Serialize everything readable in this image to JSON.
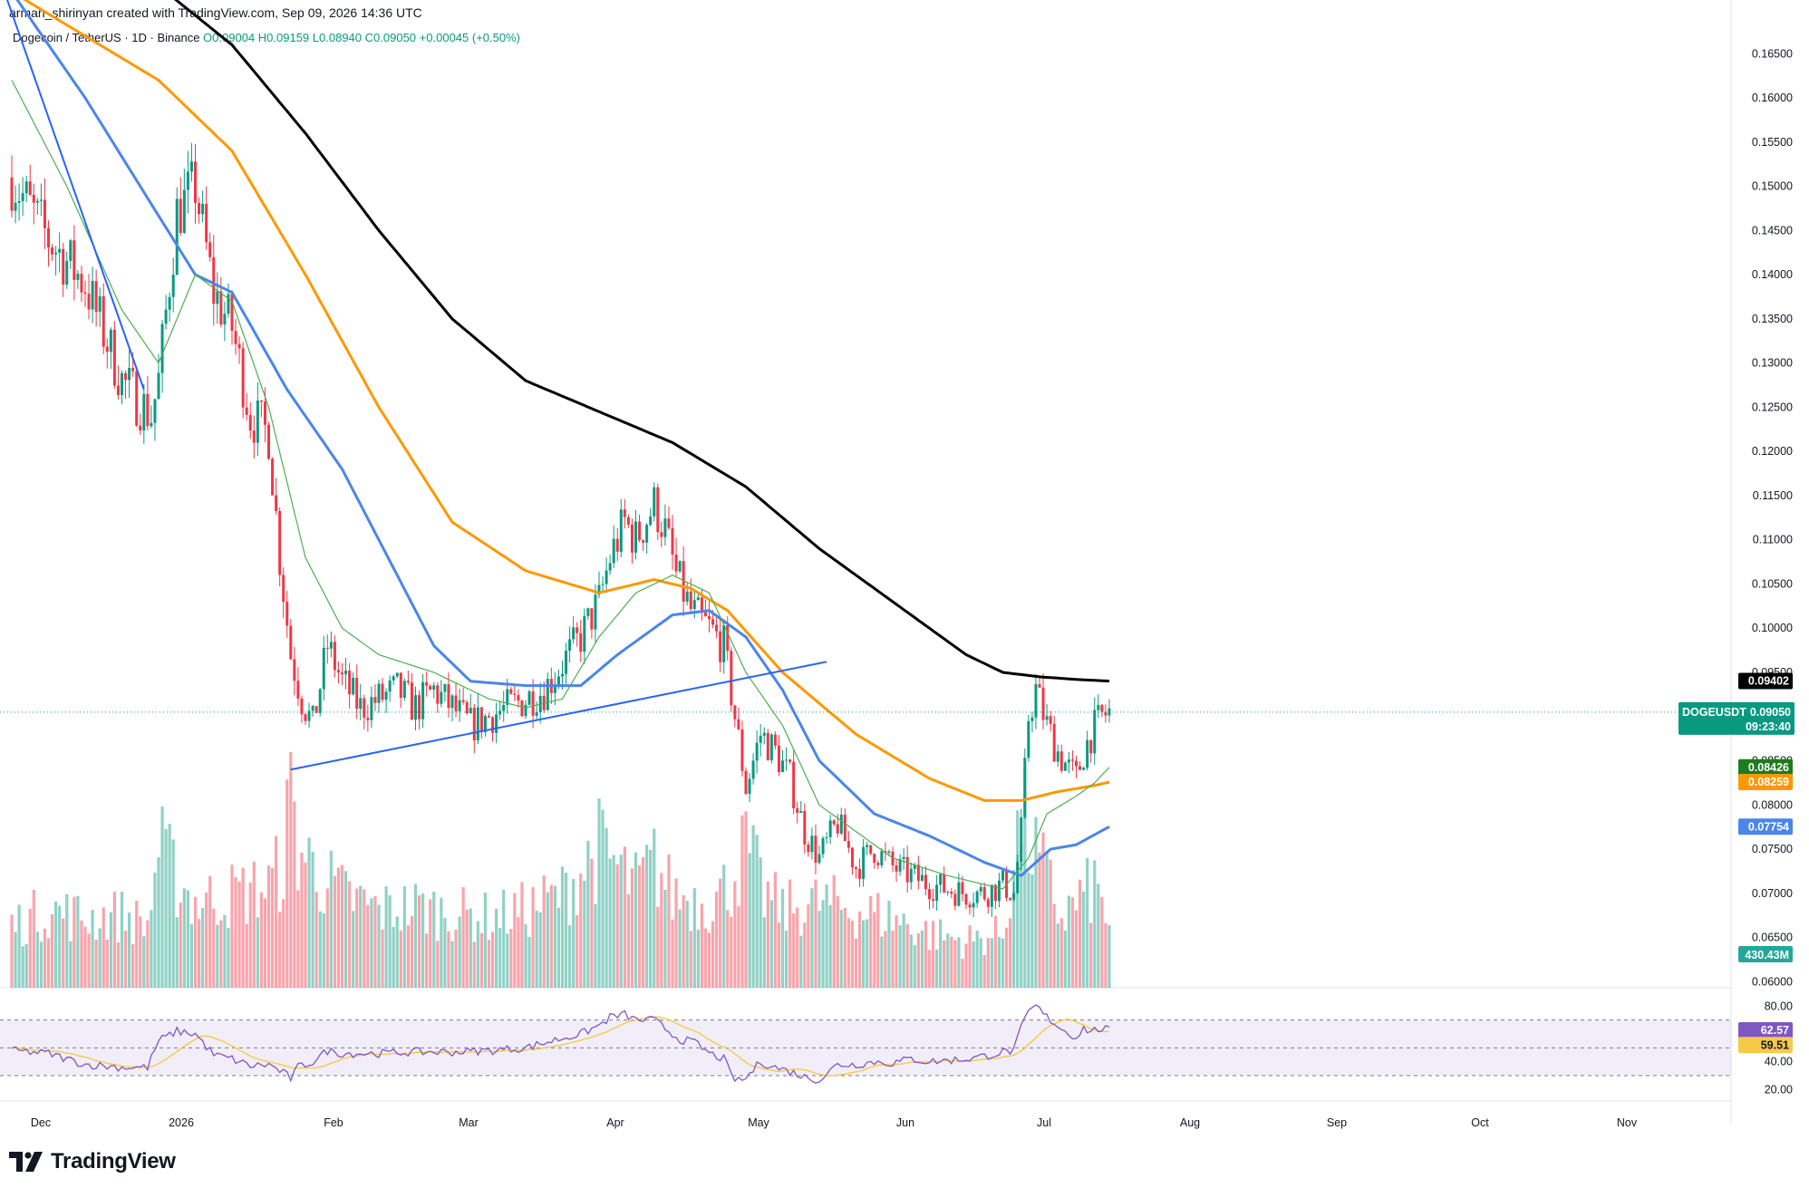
{
  "header": {
    "credit": "arman_shirinyan created with TradingView.com, Sep 09, 2026 14:36 UTC"
  },
  "legend": {
    "symbol": "Dogecoin / TetherUS · 1D · Binance",
    "open": "O0.09004",
    "high": "H0.09159",
    "low": "L0.08940",
    "close": "C0.09050",
    "change": "+0.00045 (+0.50%)"
  },
  "footer": {
    "brand": "TradingView"
  },
  "chart_data": {
    "type": "candlestick",
    "symbol": "DOGEUSDT",
    "timeframe": "1D",
    "exchange": "Binance",
    "price_axis": {
      "ticks": [
        "0.16500",
        "0.16000",
        "0.15500",
        "0.15000",
        "0.14500",
        "0.14000",
        "0.13500",
        "0.13000",
        "0.12500",
        "0.12000",
        "0.11500",
        "0.11000",
        "0.10500",
        "0.10000",
        "0.09500",
        "0.08500",
        "0.08000",
        "0.07500",
        "0.07000",
        "0.06500",
        "0.06000"
      ],
      "range": [
        0.0585,
        0.168
      ]
    },
    "time_axis": {
      "labels": [
        "Dec",
        "2026",
        "Feb",
        "Mar",
        "Apr",
        "May",
        "Jun",
        "Jul",
        "Aug",
        "Sep",
        "Oct",
        "Nov"
      ]
    },
    "price_tags": [
      {
        "label": "",
        "value": "0.09402",
        "bg": "#000000"
      },
      {
        "label": "DOGEUSDT",
        "value": "0.09050",
        "timer": "09:23:40",
        "bg": "#089981"
      },
      {
        "label": "",
        "value": "0.08426",
        "bg": "#1b7d1b"
      },
      {
        "label": "",
        "value": "0.08259",
        "bg": "#ff9800"
      },
      {
        "label": "",
        "value": "0.07754",
        "bg": "#4a86e8"
      }
    ],
    "volume_tag": "430.43M",
    "rsi": {
      "ticks": [
        "80.00",
        "40.00",
        "20.00"
      ],
      "levels": [
        70,
        50,
        30
      ],
      "value": "62.57",
      "ma_value": "59.51"
    },
    "series_keyframes": {
      "close": [
        [
          0,
          0.151
        ],
        [
          10,
          0.144
        ],
        [
          20,
          0.139
        ],
        [
          30,
          0.128
        ],
        [
          38,
          0.124
        ],
        [
          40,
          0.128
        ],
        [
          45,
          0.147
        ],
        [
          50,
          0.15
        ],
        [
          55,
          0.138
        ],
        [
          60,
          0.134
        ],
        [
          65,
          0.124
        ],
        [
          70,
          0.122
        ],
        [
          73,
          0.108
        ],
        [
          76,
          0.097
        ],
        [
          79,
          0.092
        ],
        [
          82,
          0.089
        ],
        [
          86,
          0.098
        ],
        [
          90,
          0.094
        ],
        [
          95,
          0.091
        ],
        [
          100,
          0.092
        ],
        [
          105,
          0.093
        ],
        [
          110,
          0.091
        ],
        [
          115,
          0.093
        ],
        [
          120,
          0.091
        ],
        [
          125,
          0.089
        ],
        [
          130,
          0.09
        ],
        [
          135,
          0.091
        ],
        [
          140,
          0.092
        ],
        [
          145,
          0.093
        ],
        [
          150,
          0.096
        ],
        [
          155,
          0.099
        ],
        [
          160,
          0.103
        ],
        [
          163,
          0.108
        ],
        [
          167,
          0.112
        ],
        [
          170,
          0.11
        ],
        [
          175,
          0.114
        ],
        [
          178,
          0.111
        ],
        [
          181,
          0.106
        ],
        [
          185,
          0.102
        ],
        [
          190,
          0.1
        ],
        [
          194,
          0.098
        ],
        [
          197,
          0.09
        ],
        [
          200,
          0.082
        ],
        [
          204,
          0.088
        ],
        [
          208,
          0.086
        ],
        [
          212,
          0.083
        ],
        [
          216,
          0.077
        ],
        [
          220,
          0.074
        ],
        [
          225,
          0.078
        ],
        [
          230,
          0.073
        ],
        [
          235,
          0.075
        ],
        [
          240,
          0.073
        ],
        [
          245,
          0.072
        ],
        [
          250,
          0.071
        ],
        [
          255,
          0.0705
        ],
        [
          260,
          0.07
        ],
        [
          265,
          0.07
        ],
        [
          270,
          0.071
        ],
        [
          273,
          0.07
        ],
        [
          275,
          0.077
        ],
        [
          277,
          0.09
        ],
        [
          279,
          0.093
        ],
        [
          282,
          0.089
        ],
        [
          285,
          0.086
        ],
        [
          288,
          0.084
        ],
        [
          290,
          0.083
        ],
        [
          292,
          0.086
        ],
        [
          294,
          0.088
        ],
        [
          297,
          0.09
        ],
        [
          299,
          0.0905
        ]
      ],
      "volume_m": [
        [
          0,
          400
        ],
        [
          10,
          500
        ],
        [
          20,
          450
        ],
        [
          30,
          470
        ],
        [
          37,
          400
        ],
        [
          40,
          900
        ],
        [
          45,
          700
        ],
        [
          50,
          550
        ],
        [
          60,
          600
        ],
        [
          70,
          650
        ],
        [
          74,
          800
        ],
        [
          76,
          1300
        ],
        [
          78,
          900
        ],
        [
          85,
          700
        ],
        [
          90,
          600
        ],
        [
          100,
          500
        ],
        [
          110,
          520
        ],
        [
          120,
          480
        ],
        [
          130,
          450
        ],
        [
          140,
          500
        ],
        [
          150,
          600
        ],
        [
          160,
          900
        ],
        [
          170,
          650
        ],
        [
          175,
          800
        ],
        [
          180,
          600
        ],
        [
          190,
          550
        ],
        [
          195,
          650
        ],
        [
          200,
          900
        ],
        [
          205,
          600
        ],
        [
          210,
          500
        ],
        [
          220,
          550
        ],
        [
          230,
          500
        ],
        [
          240,
          450
        ],
        [
          250,
          350
        ],
        [
          260,
          300
        ],
        [
          270,
          350
        ],
        [
          275,
          1100
        ],
        [
          278,
          900
        ],
        [
          282,
          700
        ],
        [
          286,
          450
        ],
        [
          290,
          550
        ],
        [
          295,
          650
        ],
        [
          299,
          430
        ]
      ],
      "rsi": [
        [
          0,
          48
        ],
        [
          10,
          46
        ],
        [
          20,
          38
        ],
        [
          30,
          36
        ],
        [
          37,
          36
        ],
        [
          40,
          55
        ],
        [
          45,
          62
        ],
        [
          50,
          60
        ],
        [
          55,
          45
        ],
        [
          60,
          42
        ],
        [
          65,
          37
        ],
        [
          70,
          38
        ],
        [
          74,
          32
        ],
        [
          76,
          28
        ],
        [
          78,
          36
        ],
        [
          82,
          40
        ],
        [
          86,
          48
        ],
        [
          90,
          46
        ],
        [
          100,
          46
        ],
        [
          110,
          47
        ],
        [
          120,
          47
        ],
        [
          130,
          48
        ],
        [
          140,
          50
        ],
        [
          150,
          57
        ],
        [
          155,
          60
        ],
        [
          160,
          66
        ],
        [
          163,
          72
        ],
        [
          167,
          74
        ],
        [
          170,
          70
        ],
        [
          175,
          70
        ],
        [
          178,
          64
        ],
        [
          182,
          56
        ],
        [
          186,
          54
        ],
        [
          190,
          46
        ],
        [
          194,
          42
        ],
        [
          196,
          30
        ],
        [
          198,
          26
        ],
        [
          200,
          28
        ],
        [
          204,
          40
        ],
        [
          208,
          36
        ],
        [
          212,
          33
        ],
        [
          216,
          29
        ],
        [
          220,
          27
        ],
        [
          225,
          38
        ],
        [
          230,
          38
        ],
        [
          235,
          40
        ],
        [
          240,
          39
        ],
        [
          245,
          42
        ],
        [
          250,
          40
        ],
        [
          255,
          41
        ],
        [
          260,
          42
        ],
        [
          265,
          44
        ],
        [
          270,
          47
        ],
        [
          273,
          48
        ],
        [
          275,
          64
        ],
        [
          277,
          76
        ],
        [
          279,
          80
        ],
        [
          282,
          72
        ],
        [
          285,
          66
        ],
        [
          288,
          60
        ],
        [
          290,
          58
        ],
        [
          292,
          64
        ],
        [
          294,
          62
        ],
        [
          297,
          64
        ],
        [
          299,
          62.57
        ]
      ]
    },
    "moving_averages": [
      {
        "color": "#000000",
        "keyframes": [
          [
            0,
            0.182
          ],
          [
            30,
            0.176
          ],
          [
            60,
            0.166
          ],
          [
            80,
            0.156
          ],
          [
            100,
            0.145
          ],
          [
            120,
            0.135
          ],
          [
            140,
            0.128
          ],
          [
            160,
            0.1245
          ],
          [
            180,
            0.121
          ],
          [
            200,
            0.116
          ],
          [
            220,
            0.109
          ],
          [
            240,
            0.103
          ],
          [
            260,
            0.097
          ],
          [
            270,
            0.095
          ],
          [
            280,
            0.0945
          ],
          [
            290,
            0.0942
          ],
          [
            299,
            0.09402
          ]
        ]
      },
      {
        "color": "#ff9800",
        "keyframes": [
          [
            0,
            0.172
          ],
          [
            40,
            0.162
          ],
          [
            60,
            0.154
          ],
          [
            80,
            0.14
          ],
          [
            100,
            0.125
          ],
          [
            120,
            0.112
          ],
          [
            140,
            0.1065
          ],
          [
            160,
            0.104
          ],
          [
            175,
            0.1055
          ],
          [
            185,
            0.1045
          ],
          [
            195,
            0.102
          ],
          [
            210,
            0.095
          ],
          [
            230,
            0.088
          ],
          [
            250,
            0.083
          ],
          [
            265,
            0.0805
          ],
          [
            275,
            0.0805
          ],
          [
            285,
            0.0815
          ],
          [
            295,
            0.0822
          ],
          [
            299,
            0.08259
          ]
        ]
      },
      {
        "color": "#4a86e8",
        "keyframes": [
          [
            0,
            0.172
          ],
          [
            20,
            0.16
          ],
          [
            35,
            0.15
          ],
          [
            50,
            0.14
          ],
          [
            60,
            0.138
          ],
          [
            75,
            0.127
          ],
          [
            90,
            0.118
          ],
          [
            105,
            0.106
          ],
          [
            115,
            0.098
          ],
          [
            125,
            0.094
          ],
          [
            140,
            0.0935
          ],
          [
            155,
            0.0935
          ],
          [
            165,
            0.097
          ],
          [
            180,
            0.1015
          ],
          [
            190,
            0.102
          ],
          [
            200,
            0.099
          ],
          [
            210,
            0.093
          ],
          [
            220,
            0.085
          ],
          [
            235,
            0.079
          ],
          [
            250,
            0.0765
          ],
          [
            265,
            0.0735
          ],
          [
            275,
            0.072
          ],
          [
            283,
            0.075
          ],
          [
            290,
            0.0755
          ],
          [
            299,
            0.07754
          ]
        ]
      },
      {
        "color": "#4caf50",
        "keyframes": [
          [
            0,
            0.162
          ],
          [
            15,
            0.15
          ],
          [
            30,
            0.136
          ],
          [
            40,
            0.13
          ],
          [
            50,
            0.14
          ],
          [
            60,
            0.137
          ],
          [
            70,
            0.125
          ],
          [
            80,
            0.108
          ],
          [
            90,
            0.1
          ],
          [
            100,
            0.097
          ],
          [
            115,
            0.095
          ],
          [
            130,
            0.092
          ],
          [
            140,
            0.091
          ],
          [
            150,
            0.092
          ],
          [
            160,
            0.099
          ],
          [
            170,
            0.104
          ],
          [
            180,
            0.106
          ],
          [
            190,
            0.104
          ],
          [
            200,
            0.095
          ],
          [
            210,
            0.089
          ],
          [
            220,
            0.08
          ],
          [
            230,
            0.077
          ],
          [
            240,
            0.074
          ],
          [
            255,
            0.072
          ],
          [
            270,
            0.0705
          ],
          [
            277,
            0.074
          ],
          [
            282,
            0.079
          ],
          [
            290,
            0.081
          ],
          [
            295,
            0.0825
          ],
          [
            299,
            0.08426
          ]
        ]
      }
    ],
    "trendlines": [
      {
        "color": "#2962ff",
        "points": [
          [
            -2,
            0.172
          ],
          [
            36,
            0.127
          ]
        ]
      },
      {
        "color": "#2962ff",
        "points": [
          [
            76,
            0.084
          ],
          [
            222,
            0.0962
          ]
        ]
      }
    ]
  }
}
